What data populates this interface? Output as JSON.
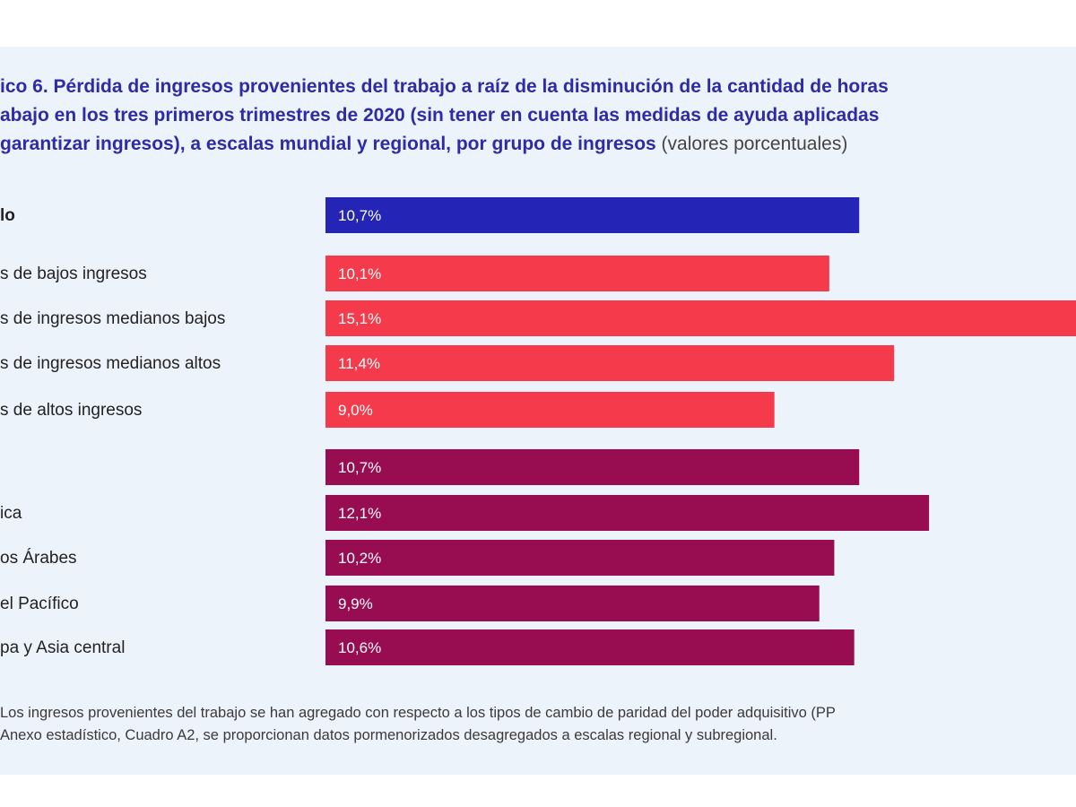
{
  "title": {
    "line1": "ico 6.  Pérdida de ingresos provenientes del trabajo a raíz de la disminución de la cantidad de horas",
    "line2": "abajo en los tres primeros trimestres de 2020 (sin tener en cuenta las medidas de ayuda aplicadas",
    "line3": "garantizar ingresos), a escalas mundial y regional, por grupo de ingresos",
    "unit": "(valores porcentuales)"
  },
  "notes": {
    "line1": "Los ingresos provenientes del trabajo se han agregado con respecto a los tipos de cambio de paridad del poder adquisitivo (PP",
    "line2": "Anexo estadístico, Cuadro A2, se proporcionan datos pormenorizados desagregados a escalas regional y subregional."
  },
  "colors": {
    "world": "#2424b6",
    "income": "#f53b4b",
    "region": "#980d52",
    "title": "#2d2ba6",
    "panel": "#edf3fb"
  },
  "chart_data": {
    "type": "bar",
    "orientation": "horizontal",
    "xlim": [
      0,
      15.1
    ],
    "unit": "%",
    "categories": [
      "lo",
      "s de bajos ingresos",
      "s de ingresos medianos bajos",
      "s de ingresos medianos altos",
      "s de altos ingresos",
      "",
      "ica",
      "os Árabes",
      "el Pacífico",
      "pa y Asia central"
    ],
    "values": [
      10.7,
      10.1,
      15.1,
      11.4,
      9.0,
      10.7,
      12.1,
      10.2,
      9.9,
      10.6
    ],
    "labels": [
      "10,7%",
      "10,1%",
      "15,1%",
      "11,4%",
      "9,0%",
      "10,7%",
      "12,1%",
      "10,2%",
      "9,9%",
      "10,6%"
    ],
    "groups": [
      "world",
      "income",
      "income",
      "income",
      "income",
      "region",
      "region",
      "region",
      "region",
      "region"
    ],
    "bold": [
      true,
      false,
      false,
      false,
      false,
      false,
      false,
      false,
      false,
      false
    ]
  }
}
